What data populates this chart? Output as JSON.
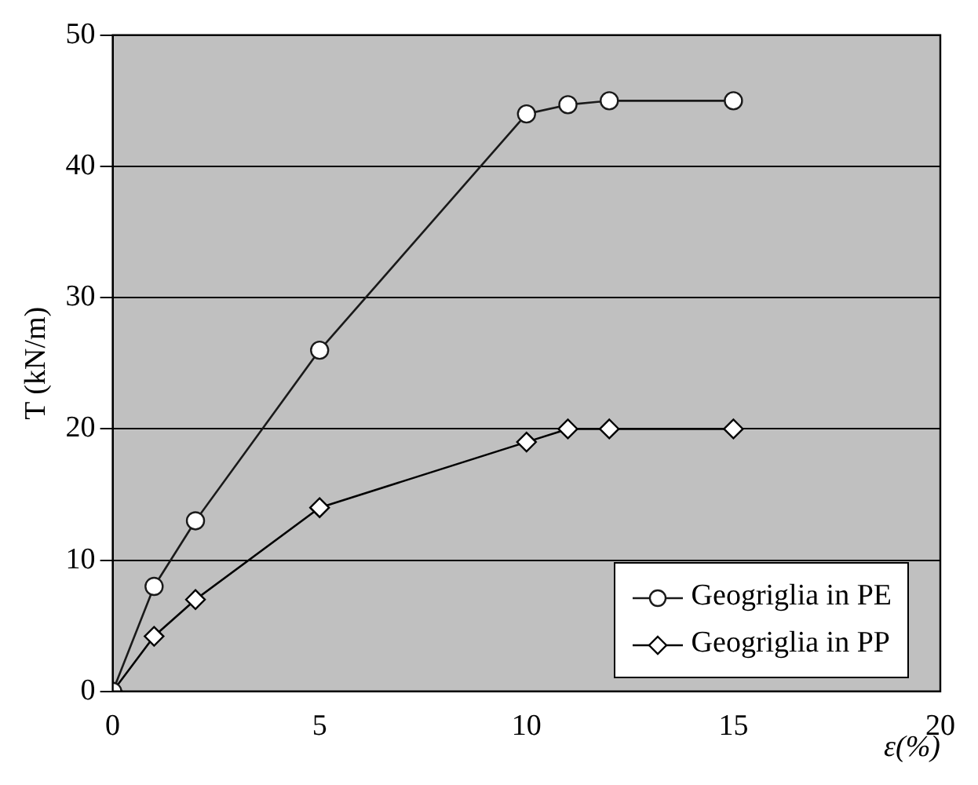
{
  "chart_data": {
    "type": "line",
    "xlabel": "ε(%)",
    "ylabel": "T (kN/m)",
    "xlim": [
      0,
      20
    ],
    "xticks": [
      0,
      5,
      10,
      15,
      20
    ],
    "ylim": [
      0,
      50
    ],
    "yticks": [
      0,
      10,
      20,
      30,
      40,
      50
    ],
    "grid": "y",
    "legend": "bottom right",
    "line_style": "solid",
    "series": [
      {
        "name": "Geogriglia in PE",
        "color": "#1a1a1a",
        "marker": "circle",
        "x": [
          0,
          1,
          2,
          5,
          10,
          11,
          12,
          15
        ],
        "values": [
          0,
          8,
          13,
          26,
          44,
          44.7,
          45,
          45
        ]
      },
      {
        "name": "Geogriglia in PP",
        "color": "#000000",
        "marker": "diamond",
        "x": [
          0,
          1,
          2,
          5,
          10,
          11,
          12,
          15
        ],
        "values": [
          0,
          4.2,
          7,
          14,
          19,
          20,
          20,
          20
        ]
      }
    ]
  }
}
